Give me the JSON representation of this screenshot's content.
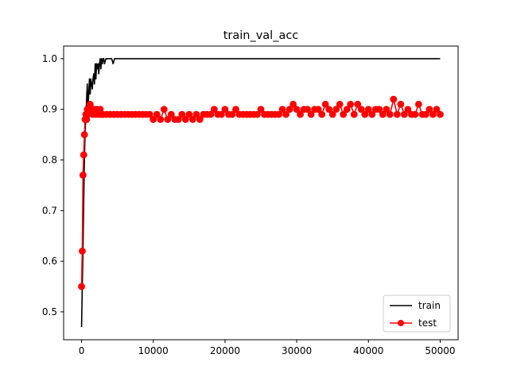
{
  "chart_data": {
    "type": "line",
    "title": "train_val_acc",
    "xlabel": "",
    "ylabel": "",
    "xlim": [
      -2500,
      52500
    ],
    "ylim": [
      0.445,
      1.025
    ],
    "x_ticks": [
      0,
      10000,
      20000,
      30000,
      40000,
      50000
    ],
    "x_tick_labels": [
      "0",
      "10000",
      "20000",
      "30000",
      "40000",
      "50000"
    ],
    "y_ticks": [
      0.5,
      0.6,
      0.7,
      0.8,
      0.9,
      1.0
    ],
    "y_tick_labels": [
      "0.5",
      "0.6",
      "0.7",
      "0.8",
      "0.9",
      "1.0"
    ],
    "grid": false,
    "legend": "lower-right",
    "series": [
      {
        "name": "train",
        "color": "#000000",
        "marker": "none",
        "x": [
          0,
          100,
          200,
          300,
          400,
          500,
          600,
          700,
          800,
          900,
          1000,
          1100,
          1200,
          1300,
          1400,
          1500,
          1600,
          1700,
          1800,
          1900,
          2000,
          2100,
          2200,
          2300,
          2400,
          2500,
          2600,
          2700,
          2800,
          2900,
          3000,
          3100,
          3200,
          3400,
          3600,
          3800,
          4000,
          4200,
          4400,
          4600,
          4800,
          5000,
          10000,
          20000,
          30000,
          40000,
          50000
        ],
        "y": [
          0.47,
          0.55,
          0.62,
          0.72,
          0.8,
          0.86,
          0.88,
          0.92,
          0.95,
          0.9,
          0.93,
          0.96,
          0.93,
          0.96,
          0.95,
          0.94,
          0.96,
          0.97,
          0.95,
          0.99,
          0.96,
          0.99,
          0.98,
          0.99,
          0.97,
          0.99,
          1.0,
          0.98,
          1.0,
          0.99,
          1.0,
          1.0,
          0.99,
          1.0,
          1.0,
          1.0,
          1.0,
          1.0,
          0.99,
          1.0,
          1.0,
          1.0,
          1.0,
          1.0,
          1.0,
          1.0,
          1.0
        ]
      },
      {
        "name": "test",
        "color": "#ff0000",
        "marker": "circle",
        "x": [
          0,
          100,
          200,
          300,
          400,
          500,
          600,
          700,
          800,
          900,
          1000,
          1200,
          1400,
          1600,
          1800,
          2000,
          2200,
          2400,
          2600,
          2800,
          3000,
          3500,
          4000,
          4500,
          5000,
          5500,
          6000,
          6500,
          7000,
          7500,
          8000,
          8500,
          9000,
          9500,
          10000,
          10500,
          11000,
          11500,
          12000,
          12500,
          13000,
          13500,
          14000,
          14500,
          15000,
          15500,
          16000,
          16500,
          17000,
          17500,
          18000,
          18500,
          19000,
          19500,
          20000,
          20500,
          21000,
          21500,
          22000,
          22500,
          23000,
          23500,
          24000,
          24500,
          25000,
          25500,
          26000,
          26500,
          27000,
          27500,
          28000,
          28500,
          29000,
          29500,
          30000,
          30500,
          31000,
          31500,
          32000,
          32500,
          33000,
          33500,
          34000,
          34500,
          35000,
          35500,
          36000,
          36500,
          37000,
          37500,
          38000,
          38500,
          39000,
          39500,
          40000,
          40500,
          41000,
          41500,
          42000,
          42500,
          43000,
          43500,
          44000,
          44500,
          45000,
          45500,
          46000,
          46500,
          47000,
          47500,
          48000,
          48500,
          49000,
          49500,
          50000
        ],
        "y": [
          0.55,
          0.62,
          0.77,
          0.81,
          0.85,
          0.88,
          0.89,
          0.88,
          0.9,
          0.89,
          0.9,
          0.91,
          0.9,
          0.89,
          0.9,
          0.89,
          0.9,
          0.89,
          0.9,
          0.89,
          0.89,
          0.89,
          0.89,
          0.89,
          0.89,
          0.89,
          0.89,
          0.89,
          0.89,
          0.89,
          0.89,
          0.89,
          0.89,
          0.89,
          0.88,
          0.89,
          0.88,
          0.9,
          0.88,
          0.89,
          0.88,
          0.88,
          0.89,
          0.88,
          0.89,
          0.88,
          0.89,
          0.88,
          0.89,
          0.89,
          0.89,
          0.9,
          0.89,
          0.89,
          0.9,
          0.89,
          0.89,
          0.9,
          0.89,
          0.89,
          0.89,
          0.89,
          0.89,
          0.89,
          0.9,
          0.89,
          0.89,
          0.89,
          0.89,
          0.89,
          0.9,
          0.89,
          0.9,
          0.91,
          0.9,
          0.89,
          0.9,
          0.9,
          0.89,
          0.9,
          0.9,
          0.89,
          0.91,
          0.9,
          0.89,
          0.9,
          0.91,
          0.89,
          0.9,
          0.91,
          0.89,
          0.91,
          0.9,
          0.89,
          0.9,
          0.89,
          0.9,
          0.9,
          0.89,
          0.9,
          0.89,
          0.92,
          0.89,
          0.91,
          0.89,
          0.9,
          0.89,
          0.89,
          0.91,
          0.89,
          0.89,
          0.9,
          0.89,
          0.9,
          0.89
        ]
      }
    ]
  }
}
